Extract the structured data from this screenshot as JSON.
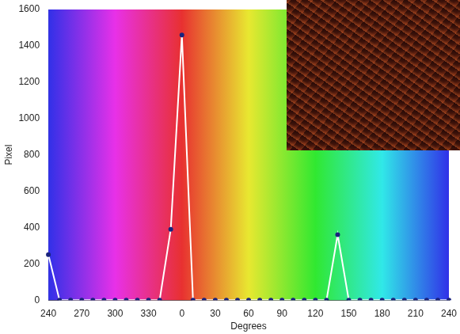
{
  "chart_data": {
    "type": "line",
    "x_label": "Degrees",
    "y_label": "Pixel",
    "categories": [
      "240",
      null,
      null,
      "270",
      null,
      null,
      "300",
      null,
      null,
      "330",
      null,
      null,
      "0",
      null,
      null,
      "30",
      null,
      null,
      "60",
      null,
      null,
      "90",
      null,
      null,
      "120",
      null,
      null,
      "150",
      null,
      null,
      "180",
      null,
      null,
      "210",
      null,
      null,
      "240"
    ],
    "values": [
      250,
      0,
      0,
      0,
      0,
      0,
      0,
      0,
      0,
      0,
      0,
      390,
      1460,
      0,
      0,
      0,
      0,
      0,
      0,
      0,
      0,
      0,
      0,
      0,
      0,
      0,
      360,
      0,
      0,
      0,
      0,
      0,
      0,
      0,
      0,
      0,
      0
    ],
    "ylim": [
      0,
      1600
    ],
    "yticks": [
      0,
      200,
      400,
      600,
      800,
      1000,
      1200,
      1400,
      1600
    ],
    "grid": false,
    "color": "#ffffff",
    "marker": "circle"
  }
}
